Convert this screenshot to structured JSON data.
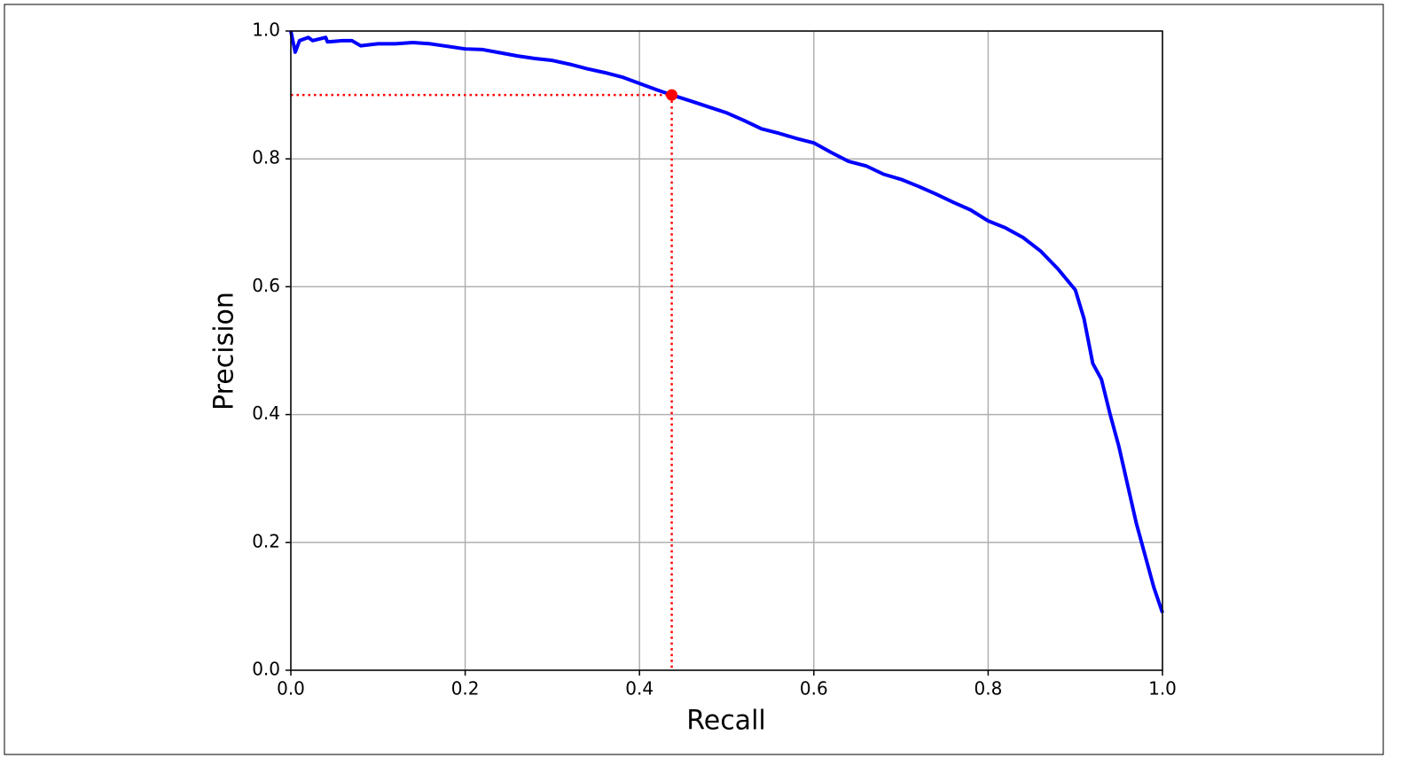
{
  "chart_data": {
    "type": "line",
    "xlabel": "Recall",
    "ylabel": "Precision",
    "x": [
      0,
      0.005,
      0.01,
      0.02,
      0.025,
      0.04,
      0.042,
      0.06,
      0.07,
      0.08,
      0.1,
      0.12,
      0.14,
      0.16,
      0.18,
      0.2,
      0.22,
      0.24,
      0.26,
      0.28,
      0.3,
      0.32,
      0.34,
      0.36,
      0.38,
      0.4,
      0.42,
      0.437,
      0.46,
      0.48,
      0.5,
      0.52,
      0.54,
      0.56,
      0.58,
      0.6,
      0.62,
      0.64,
      0.66,
      0.68,
      0.7,
      0.72,
      0.74,
      0.76,
      0.78,
      0.8,
      0.82,
      0.84,
      0.86,
      0.88,
      0.9,
      0.91,
      0.92,
      0.93,
      0.94,
      0.95,
      0.96,
      0.97,
      0.98,
      0.99,
      1.0
    ],
    "values": [
      1.0,
      0.967,
      0.985,
      0.99,
      0.985,
      0.99,
      0.983,
      0.985,
      0.985,
      0.977,
      0.98,
      0.98,
      0.982,
      0.98,
      0.976,
      0.972,
      0.971,
      0.966,
      0.961,
      0.957,
      0.954,
      0.948,
      0.941,
      0.935,
      0.928,
      0.918,
      0.908,
      0.9,
      0.89,
      0.881,
      0.872,
      0.86,
      0.847,
      0.84,
      0.832,
      0.825,
      0.81,
      0.796,
      0.789,
      0.776,
      0.768,
      0.757,
      0.745,
      0.732,
      0.72,
      0.703,
      0.692,
      0.677,
      0.656,
      0.628,
      0.595,
      0.55,
      0.48,
      0.455,
      0.4,
      0.35,
      0.29,
      0.23,
      0.18,
      0.13,
      0.09
    ],
    "color": "#0000ff",
    "marker": {
      "x": 0.437,
      "y": 0.9,
      "color": "#ff0000"
    },
    "xlim": [
      0,
      1
    ],
    "ylim": [
      0,
      1
    ],
    "xticks": [
      {
        "value": 0,
        "label": "0.0"
      },
      0.2,
      0.4,
      0.6,
      0.8,
      {
        "value": 1,
        "label": "1.0"
      }
    ],
    "yticks": [
      {
        "value": 0,
        "label": "0.0"
      },
      0.2,
      0.4,
      0.6,
      0.8,
      {
        "value": 1,
        "label": "1.0"
      }
    ],
    "grid": true
  }
}
